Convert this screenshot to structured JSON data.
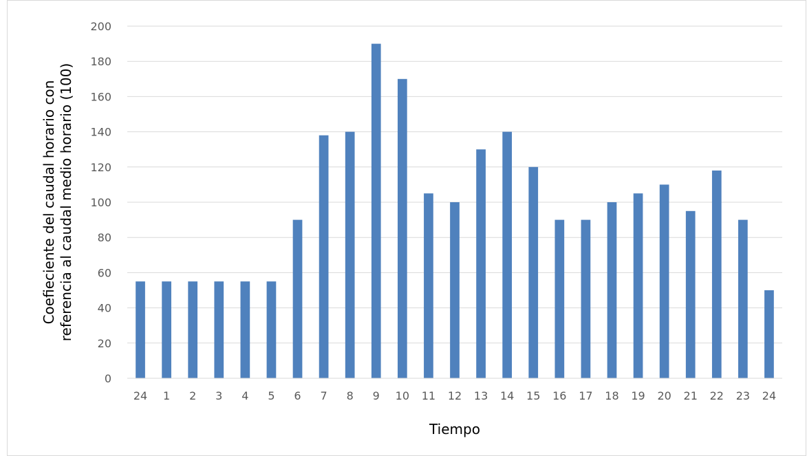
{
  "chart_data": {
    "type": "bar",
    "title": "",
    "xlabel": "Tiempo",
    "ylabel_lines": [
      "Coefieciente del caudal horario con",
      "referencia al caudal medio horario (100)"
    ],
    "categories": [
      "24",
      "1",
      "2",
      "3",
      "4",
      "5",
      "6",
      "7",
      "8",
      "9",
      "10",
      "11",
      "12",
      "13",
      "14",
      "15",
      "16",
      "17",
      "18",
      "19",
      "20",
      "21",
      "22",
      "23",
      "24"
    ],
    "values": [
      55,
      55,
      55,
      55,
      55,
      55,
      90,
      138,
      140,
      190,
      170,
      105,
      100,
      130,
      140,
      120,
      90,
      90,
      100,
      105,
      110,
      95,
      118,
      90,
      50
    ],
    "ylim": [
      0,
      200
    ],
    "yticks": [
      0,
      20,
      40,
      60,
      80,
      100,
      120,
      140,
      160,
      180,
      200
    ],
    "grid": true,
    "legend": "none",
    "bar_color": "#4f81bd",
    "grid_color": "#d9d9d9"
  }
}
